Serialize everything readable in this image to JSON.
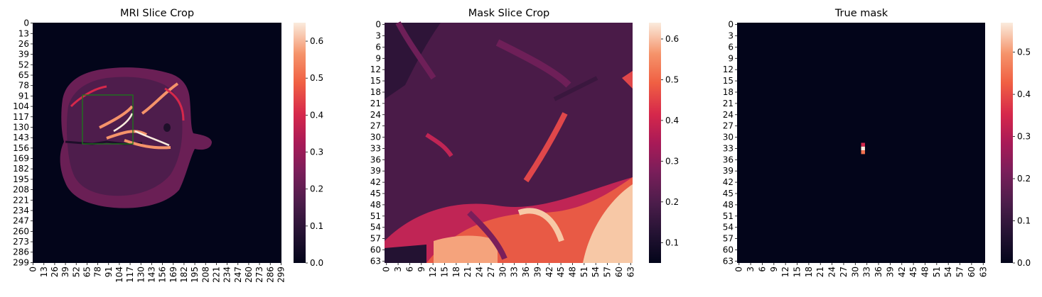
{
  "figure": {
    "colormap": "rocket",
    "background": "#ffffff"
  },
  "chart_data": [
    {
      "type": "heatmap",
      "title": "MRI Slice Crop",
      "grid": false,
      "xlabel": "",
      "ylabel": "",
      "x_ticks": [
        "0",
        "13",
        "26",
        "39",
        "52",
        "65",
        "78",
        "91",
        "104",
        "117",
        "130",
        "143",
        "156",
        "169",
        "182",
        "195",
        "208",
        "221",
        "234",
        "247",
        "260",
        "273",
        "286",
        "299"
      ],
      "y_ticks": [
        "0",
        "13",
        "26",
        "39",
        "52",
        "65",
        "78",
        "91",
        "104",
        "117",
        "130",
        "143",
        "156",
        "169",
        "182",
        "195",
        "208",
        "221",
        "234",
        "247",
        "260",
        "273",
        "286",
        "299"
      ],
      "size": 300,
      "colorbar": {
        "min": 0.0,
        "max": 0.65,
        "ticks": [
          "0.0",
          "0.1",
          "0.2",
          "0.3",
          "0.4",
          "0.5",
          "0.6"
        ],
        "tick_values": [
          0.0,
          0.1,
          0.2,
          0.3,
          0.4,
          0.5,
          0.6
        ]
      },
      "annotation": {
        "shape": "rectangle",
        "color": "#1a7a1a",
        "x_range": [
          60,
          120
        ],
        "y_range": [
          86,
          146
        ]
      }
    },
    {
      "type": "heatmap",
      "title": "Mask Slice Crop",
      "grid": false,
      "xlabel": "",
      "ylabel": "",
      "x_ticks": [
        "0",
        "3",
        "6",
        "9",
        "12",
        "15",
        "18",
        "21",
        "24",
        "27",
        "30",
        "33",
        "36",
        "39",
        "42",
        "45",
        "48",
        "51",
        "54",
        "57",
        "60",
        "63"
      ],
      "y_ticks": [
        "0",
        "3",
        "6",
        "9",
        "12",
        "15",
        "18",
        "21",
        "24",
        "27",
        "30",
        "33",
        "36",
        "39",
        "42",
        "45",
        "48",
        "51",
        "54",
        "57",
        "60",
        "63"
      ],
      "size": 64,
      "colorbar": {
        "min": 0.05,
        "max": 0.64,
        "ticks": [
          "0.1",
          "0.2",
          "0.3",
          "0.4",
          "0.5",
          "0.6"
        ],
        "tick_values": [
          0.1,
          0.2,
          0.3,
          0.4,
          0.5,
          0.6
        ]
      }
    },
    {
      "type": "heatmap",
      "title": "True mask",
      "grid": false,
      "xlabel": "",
      "ylabel": "",
      "x_ticks": [
        "0",
        "3",
        "6",
        "9",
        "12",
        "15",
        "18",
        "21",
        "24",
        "27",
        "30",
        "33",
        "36",
        "39",
        "42",
        "45",
        "48",
        "51",
        "54",
        "57",
        "60",
        "63"
      ],
      "y_ticks": [
        "0",
        "3",
        "6",
        "9",
        "12",
        "15",
        "18",
        "21",
        "24",
        "27",
        "30",
        "33",
        "36",
        "39",
        "42",
        "45",
        "48",
        "51",
        "54",
        "57",
        "60",
        "63"
      ],
      "size": 64,
      "colorbar": {
        "min": 0.0,
        "max": 0.57,
        "ticks": [
          "0.0",
          "0.1",
          "0.2",
          "0.3",
          "0.4",
          "0.5"
        ],
        "tick_values": [
          0.0,
          0.1,
          0.2,
          0.3,
          0.4,
          0.5
        ]
      },
      "nonzero_cells": [
        {
          "x": 32,
          "y": 32,
          "value": 0.35
        },
        {
          "x": 32,
          "y": 33,
          "value": 0.57
        },
        {
          "x": 32,
          "y": 34,
          "value": 0.45
        }
      ]
    }
  ]
}
